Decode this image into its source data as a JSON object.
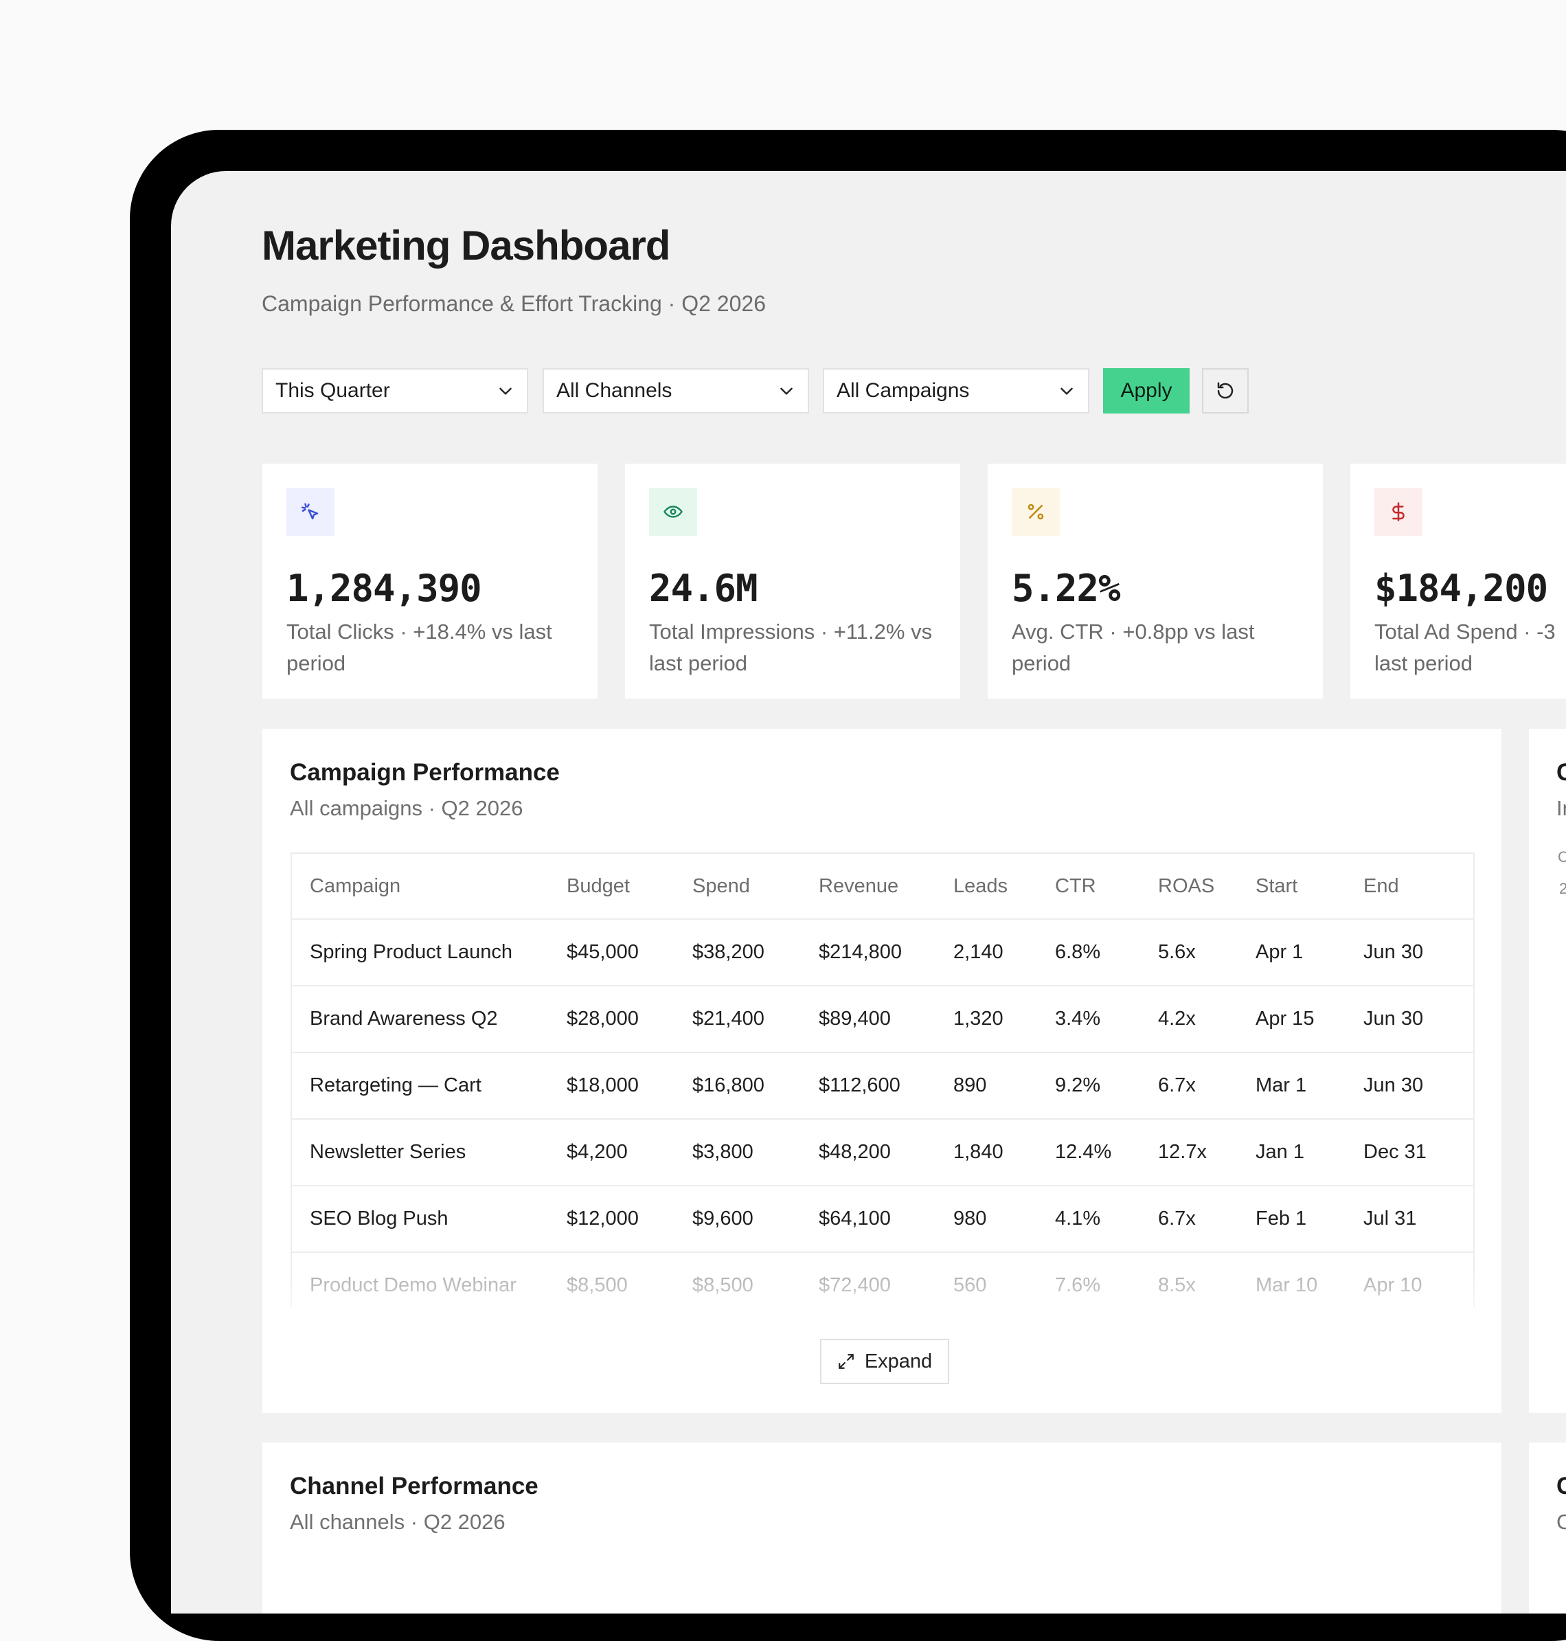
{
  "header": {
    "title": "Marketing Dashboard",
    "subtitle": "Campaign Performance & Effort Tracking · Q2 2026"
  },
  "filters": {
    "period": "This Quarter",
    "channels": "All Channels",
    "campaigns": "All Campaigns",
    "apply_label": "Apply",
    "reset_icon": "refresh-icon"
  },
  "kpis": [
    {
      "value": "1,284,390",
      "label": "Total Clicks · +18.4% vs last period",
      "icon": "cursor-click-icon",
      "color": "#3b4fd8",
      "bg": "#eef0ff"
    },
    {
      "value": "24.6M",
      "label": "Total Impressions · +11.2% vs last period",
      "icon": "eye-icon",
      "color": "#17885a",
      "bg": "#e6f8ee"
    },
    {
      "value": "5.22%",
      "label": "Avg. CTR · +0.8pp vs last period",
      "icon": "percent-icon",
      "color": "#c38a10",
      "bg": "#fdf6e6"
    },
    {
      "value": "$184,200",
      "label": "Total Ad Spend · -3",
      "label2": "last period",
      "icon": "dollar-icon",
      "color": "#c42a2a",
      "bg": "#fdeeee"
    }
  ],
  "campaign_table": {
    "title": "Campaign Performance",
    "subtitle": "All campaigns · Q2 2026",
    "columns": [
      "Campaign",
      "Budget",
      "Spend",
      "Revenue",
      "Leads",
      "CTR",
      "ROAS",
      "Start",
      "End"
    ],
    "rows": [
      [
        "Spring Product Launch",
        "$45,000",
        "$38,200",
        "$214,800",
        "2,140",
        "6.8%",
        "5.6x",
        "Apr 1",
        "Jun 30"
      ],
      [
        "Brand Awareness Q2",
        "$28,000",
        "$21,400",
        "$89,400",
        "1,320",
        "3.4%",
        "4.2x",
        "Apr 15",
        "Jun 30"
      ],
      [
        "Retargeting — Cart",
        "$18,000",
        "$16,800",
        "$112,600",
        "890",
        "9.2%",
        "6.7x",
        "Mar 1",
        "Jun 30"
      ],
      [
        "Newsletter Series",
        "$4,200",
        "$3,800",
        "$48,200",
        "1,840",
        "12.4%",
        "12.7x",
        "Jan 1",
        "Dec 31"
      ],
      [
        "SEO Blog Push",
        "$12,000",
        "$9,600",
        "$64,100",
        "980",
        "4.1%",
        "6.7x",
        "Feb 1",
        "Jul 31"
      ],
      [
        "Product Demo Webinar",
        "$8,500",
        "$8,500",
        "$72,400",
        "560",
        "7.6%",
        "8.5x",
        "Mar 10",
        "Apr 10"
      ]
    ],
    "expand_label": "Expand"
  },
  "side_card": {
    "title_fragment": "C",
    "subtitle_fragment": "In",
    "small_1": "C",
    "small_2": "2"
  },
  "channel_card": {
    "title": "Channel Performance",
    "subtitle": "All channels · Q2 2026"
  },
  "side_card_2": {
    "title_fragment": "C",
    "subtitle_fragment": "C"
  }
}
